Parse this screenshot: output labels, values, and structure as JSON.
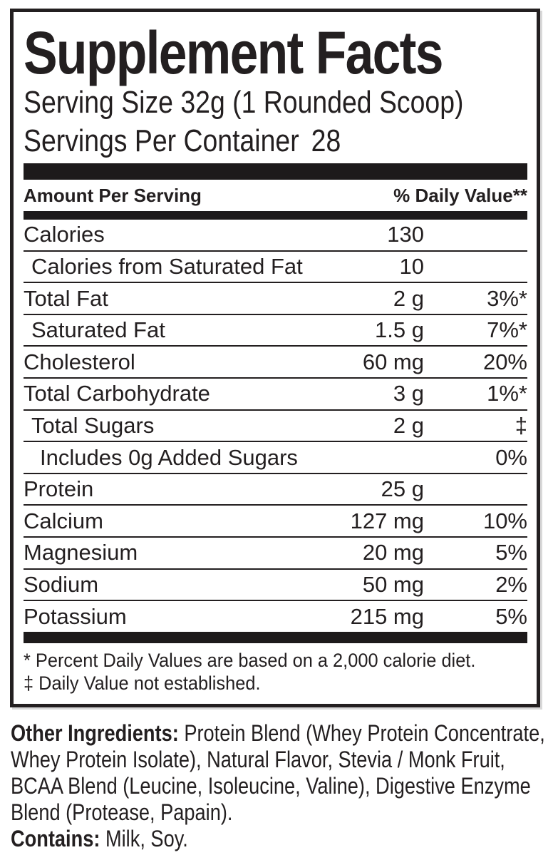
{
  "colors": {
    "ink": "#231f20",
    "bar": "#1d1a1b",
    "background": "#ffffff"
  },
  "panel": {
    "title": "Supplement Facts",
    "serving_size_line": "Serving Size 32g (1 Rounded Scoop)",
    "servings_label": "Servings Per Container",
    "servings_value": "28",
    "header": {
      "amount": "Amount Per Serving",
      "dv": "% Daily Value**"
    },
    "rows": [
      {
        "name": "Calories",
        "amount": "130",
        "dv": ""
      },
      {
        "name": "Calories from Saturated Fat",
        "amount": "10",
        "dv": ""
      },
      {
        "name": "Total Fat",
        "amount": "2 g",
        "dv": "3%*"
      },
      {
        "name": "Saturated Fat",
        "amount": "1.5 g",
        "dv": "7%*"
      },
      {
        "name": "Cholesterol",
        "amount": "60 mg",
        "dv": "20%"
      },
      {
        "name": "Total Carbohydrate",
        "amount": "3 g",
        "dv": "1%*"
      },
      {
        "name": "Total Sugars",
        "amount": "2 g",
        "dv": "‡"
      },
      {
        "name": "Includes 0g Added Sugars",
        "amount": "",
        "dv": "0%"
      },
      {
        "name": "Protein",
        "amount": "25 g",
        "dv": ""
      },
      {
        "name": "Calcium",
        "amount": "127 mg",
        "dv": "10%"
      },
      {
        "name": "Magnesium",
        "amount": "20 mg",
        "dv": "5%"
      },
      {
        "name": "Sodium",
        "amount": "50 mg",
        "dv": "2%"
      },
      {
        "name": "Potassium",
        "amount": "215 mg",
        "dv": "5%"
      }
    ],
    "footnotes": [
      "* Percent Daily Values are based on a 2,000 calorie diet.",
      "‡ Daily Value not established."
    ]
  },
  "below": {
    "other_ingredients_label": "Other Ingredients:",
    "other_ingredients_lines": [
      "Protein Blend (Whey Protein Concentrate,",
      "Whey Protein Isolate), Natural Flavor, Stevia / Monk Fruit,",
      "BCAA Blend (Leucine, Isoleucine, Valine), Digestive Enzyme",
      "Blend (Protease, Papain)."
    ],
    "contains_label": "Contains:",
    "contains_text": "Milk, Soy."
  }
}
